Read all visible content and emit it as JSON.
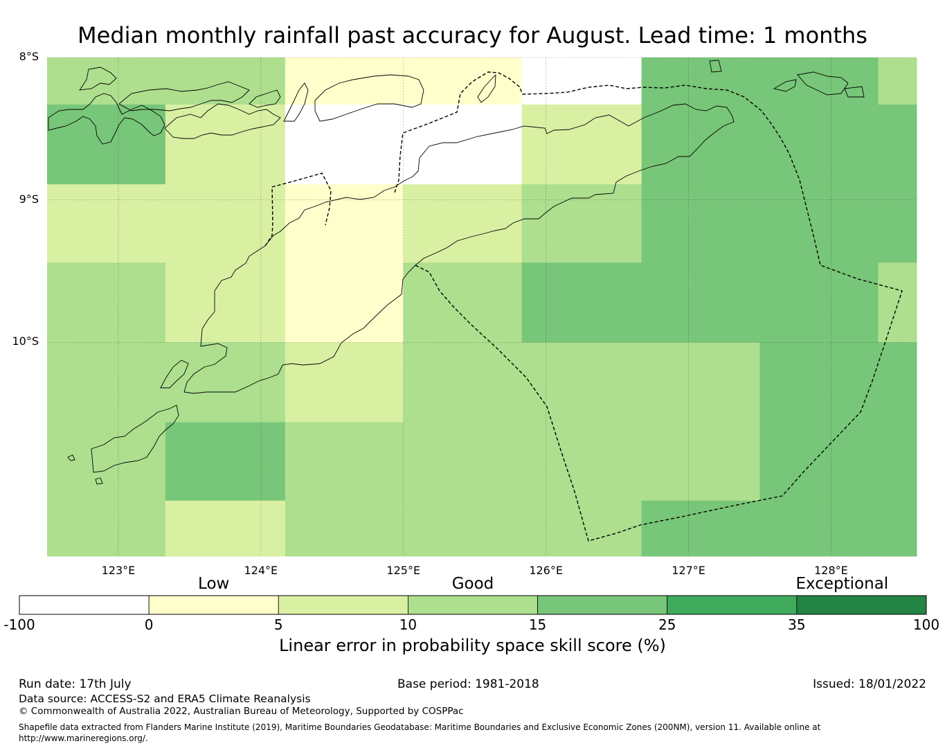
{
  "title": "Median monthly rainfall past accuracy for August. Lead time: 1 months",
  "map": {
    "lon_range": [
      122.5,
      128.6
    ],
    "lat_range": [
      -11.5,
      -8.0
    ],
    "lat_labels": [
      {
        "lat": -8.0,
        "label": "8°S"
      },
      {
        "lat": -9.0,
        "label": "9°S"
      },
      {
        "lat": -10.0,
        "label": "10°S"
      }
    ],
    "lon_labels": [
      {
        "lon": 123,
        "label": "123°E"
      },
      {
        "lon": 124,
        "label": "124°E"
      },
      {
        "lon": 125,
        "label": "125°E"
      },
      {
        "lon": 126,
        "label": "126°E"
      },
      {
        "lon": 127,
        "label": "127°E"
      },
      {
        "lon": 128,
        "label": "128°E"
      }
    ],
    "grid": {
      "lon_edges": [
        122.5,
        123.33,
        124.17,
        125.0,
        125.83,
        126.67,
        127.5,
        128.33,
        128.6
      ],
      "lat_edges": [
        -8.0,
        -8.33,
        -8.89,
        -9.44,
        -10.0,
        -10.56,
        -11.11,
        -11.5
      ],
      "colors": [
        [
          "#addf8e",
          "#addf8e",
          "#ffffcc",
          "#ffffcc",
          "#ffffff",
          "#78c679",
          "#78c679",
          "#addf8e"
        ],
        [
          "#78c679",
          "#d9f0a3",
          "#ffffff",
          "#ffffff",
          "#d9f0a3",
          "#78c679",
          "#78c679",
          "#78c679"
        ],
        [
          "#d9f0a3",
          "#d9f0a3",
          "#ffffcc",
          "#d9f0a3",
          "#addf8e",
          "#78c679",
          "#78c679",
          "#78c679"
        ],
        [
          "#addf8e",
          "#d9f0a3",
          "#ffffcc",
          "#addf8e",
          "#78c679",
          "#78c679",
          "#78c679",
          "#addf8e"
        ],
        [
          "#addf8e",
          "#addf8e",
          "#d9f0a3",
          "#addf8e",
          "#addf8e",
          "#addf8e",
          "#78c679",
          "#78c679"
        ],
        [
          "#addf8e",
          "#78c679",
          "#addf8e",
          "#addf8e",
          "#addf8e",
          "#addf8e",
          "#78c679",
          "#78c679"
        ],
        [
          "#addf8e",
          "#d9f0a3",
          "#addf8e",
          "#addf8e",
          "#addf8e",
          "#78c679",
          "#78c679",
          "#78c679"
        ]
      ]
    }
  },
  "colorbar": {
    "categories": [
      {
        "label": "Low",
        "at": 1.5
      },
      {
        "label": "Good",
        "at": 3.5
      },
      {
        "label": "Exceptional",
        "at": 6.35
      }
    ],
    "ticks": [
      "-100",
      "0",
      "5",
      "10",
      "15",
      "25",
      "35",
      "100"
    ],
    "colors": [
      "#ffffff",
      "#ffffcc",
      "#d9f0a3",
      "#addf8e",
      "#78c679",
      "#41ab5d",
      "#238443"
    ],
    "title": "Linear error in probability space skill score (%)"
  },
  "footer": {
    "run_date": "Run date: 17th July",
    "base_period": "Base period: 1981-2018",
    "issued": "Issued: 18/01/2022",
    "data_source": "Data source: ACCESS-S2 and ERA5 Climate Reanalysis",
    "copyright": "© Commonwealth of Australia 2022, Australian Bureau of Meteorology, Supported by COSPPac",
    "shapefile_line1": "Shapefile data extracted from Flanders Marine Institute (2019), Maritime Boundaries Geodatabase: Maritime Boundaries and Exclusive Economic Zones (200NM), version 11. Available online at",
    "shapefile_line2": "http://www.marineregions.org/."
  }
}
